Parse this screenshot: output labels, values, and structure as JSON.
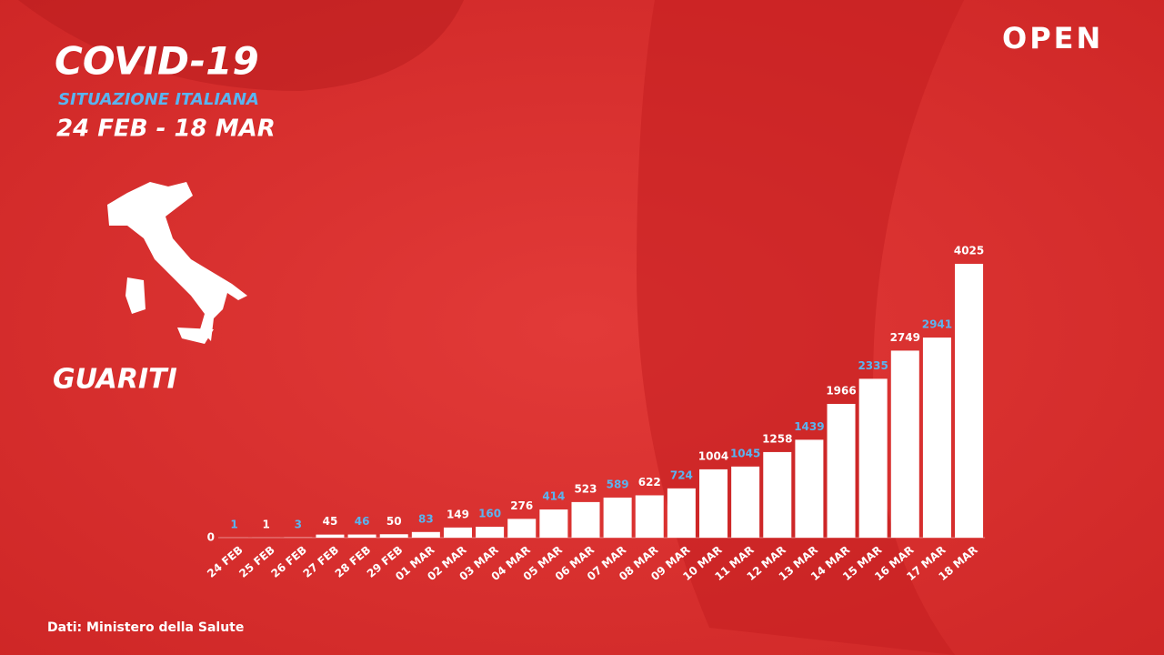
{
  "chart_data": {
    "type": "bar",
    "title": "COVID-19",
    "subtitle": "SITUAZIONE ITALIANA",
    "period": "24 FEB - 18 MAR",
    "metric": "GUARITI",
    "brand": "OPEN",
    "source": "Dati: Ministero della Salute",
    "categories": [
      "24 FEB",
      "25 FEB",
      "26 FEB",
      "27 FEB",
      "28 FEB",
      "29 FEB",
      "01 MAR",
      "02 MAR",
      "03 MAR",
      "04 MAR",
      "05 MAR",
      "06 MAR",
      "07 MAR",
      "08 MAR",
      "09 MAR",
      "10 MAR",
      "11 MAR",
      "12 MAR",
      "13 MAR",
      "14 MAR",
      "15 MAR",
      "16 MAR",
      "17 MAR",
      "18 MAR"
    ],
    "values": [
      1,
      1,
      3,
      45,
      46,
      50,
      83,
      149,
      160,
      276,
      414,
      523,
      589,
      622,
      724,
      1004,
      1045,
      1258,
      1439,
      1966,
      2335,
      2749,
      2941,
      4025
    ],
    "color": "#ffffff",
    "label_colors": [
      "#5ab4f0",
      "#ffffff"
    ],
    "ylim": [
      0,
      4025
    ],
    "yticks": [
      0
    ],
    "grid": false
  }
}
